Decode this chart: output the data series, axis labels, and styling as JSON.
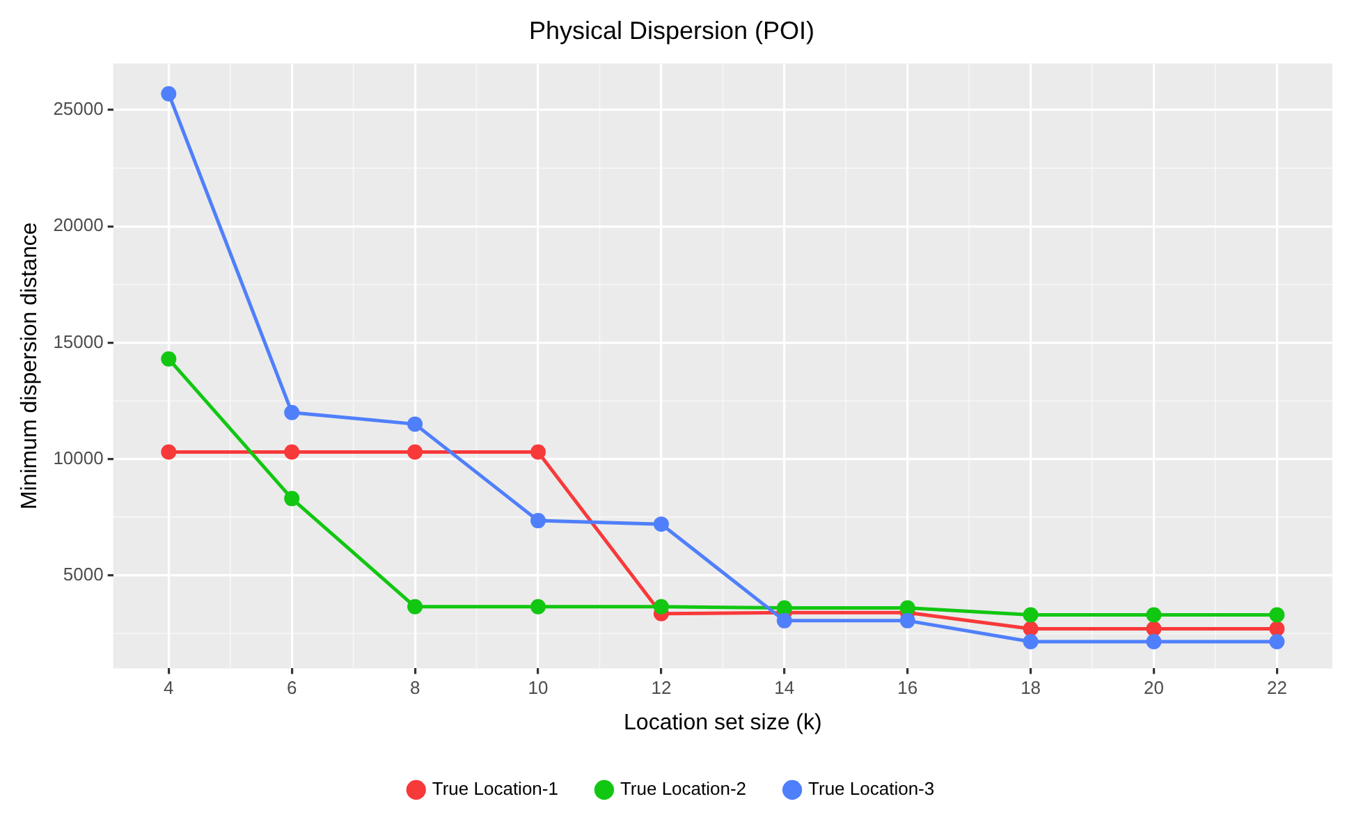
{
  "chart_data": {
    "type": "line",
    "title": "Physical Dispersion (POI)",
    "xlabel": "Location set size (k)",
    "ylabel": "Minimum dispersion distance",
    "x": [
      4,
      6,
      8,
      10,
      12,
      14,
      16,
      18,
      20,
      22
    ],
    "series": [
      {
        "name": "True Location-1",
        "color": "#f8393a",
        "values": [
          10300,
          10300,
          10300,
          10300,
          3350,
          3400,
          3400,
          2700,
          2700,
          2700
        ]
      },
      {
        "name": "True Location-2",
        "color": "#11c711",
        "values": [
          14300,
          8300,
          3650,
          3650,
          3650,
          3600,
          3600,
          3300,
          3300,
          3300
        ]
      },
      {
        "name": "True Location-3",
        "color": "#4f7ffb",
        "values": [
          25700,
          12000,
          11500,
          7350,
          7200,
          3050,
          3050,
          2150,
          2150,
          2150
        ]
      }
    ],
    "xlim": [
      3.1,
      22.9
    ],
    "xticks": [
      4,
      6,
      8,
      10,
      12,
      14,
      16,
      18,
      20,
      22
    ],
    "ylim": [
      1000,
      27000
    ],
    "yticks": [
      5000,
      10000,
      15000,
      20000,
      25000
    ],
    "grid": true,
    "legend": "bottom",
    "marker": "circle",
    "line_style": "solid"
  }
}
